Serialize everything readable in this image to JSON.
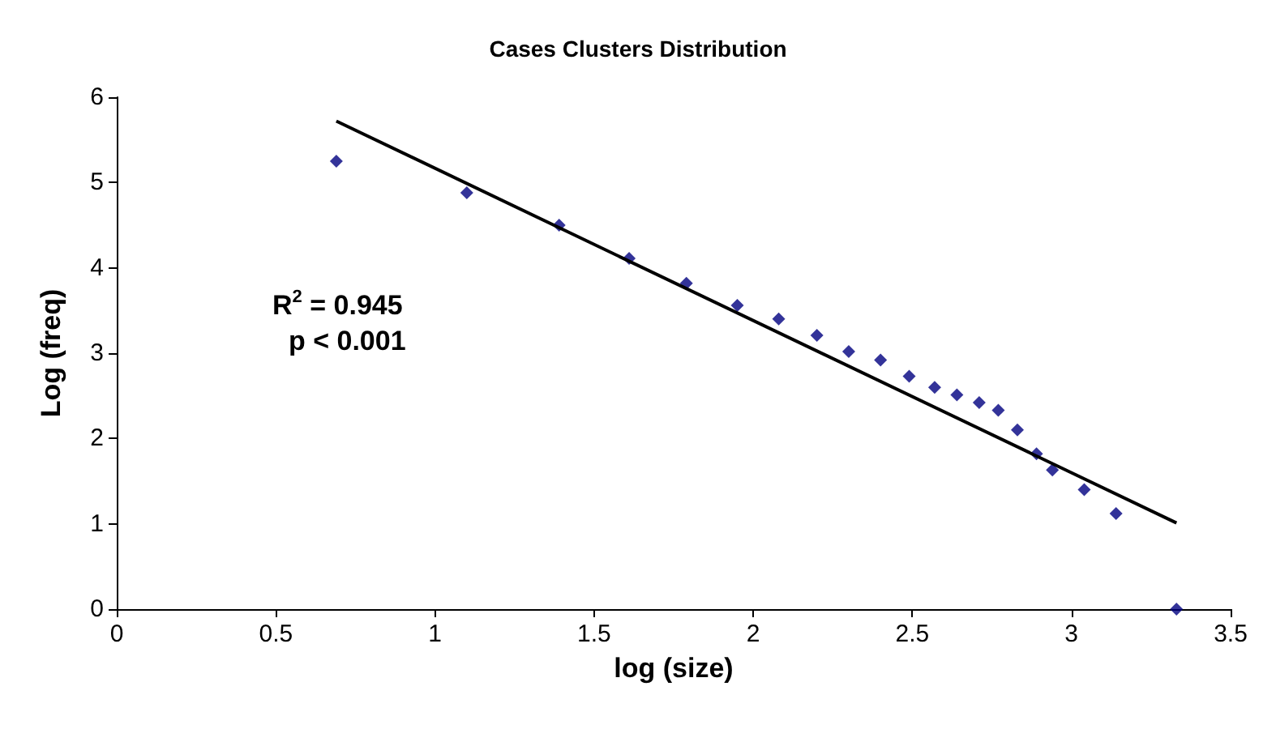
{
  "chart_data": {
    "type": "scatter",
    "title": "Cases Clusters Distribution",
    "xlabel": "log (size)",
    "ylabel": "Log (freq)",
    "x": [
      0.69,
      1.1,
      1.39,
      1.61,
      1.79,
      1.95,
      2.08,
      2.2,
      2.3,
      2.4,
      2.49,
      2.57,
      2.64,
      2.71,
      2.77,
      2.83,
      2.89,
      2.94,
      3.04,
      3.14,
      3.33
    ],
    "series": [
      {
        "color": "#000080",
        "values": [
          5.25,
          4.88,
          4.5,
          4.11,
          3.82,
          3.56,
          3.4,
          3.21,
          3.02,
          2.92,
          2.73,
          2.6,
          2.51,
          2.42,
          2.33,
          2.1,
          1.82,
          1.63,
          1.4,
          1.12,
          0
        ]
      },
      {
        "type": "line",
        "color": "#000000",
        "marker": "none",
        "x": [
          0.69,
          3.33
        ],
        "values": [
          5.72,
          1.01
        ]
      }
    ],
    "annotations": [
      "R$^{2}$ = 0.945",
      "p < 0.001"
    ],
    "xlim": [
      0,
      3.5
    ],
    "xticks": [
      0,
      0.5,
      1,
      1.5,
      2,
      2.5,
      3,
      3.5
    ],
    "ylim": [
      0,
      6
    ],
    "yticks": [
      0,
      1,
      2,
      3,
      4,
      5,
      6
    ],
    "grid": false,
    "marker": "diamond"
  }
}
